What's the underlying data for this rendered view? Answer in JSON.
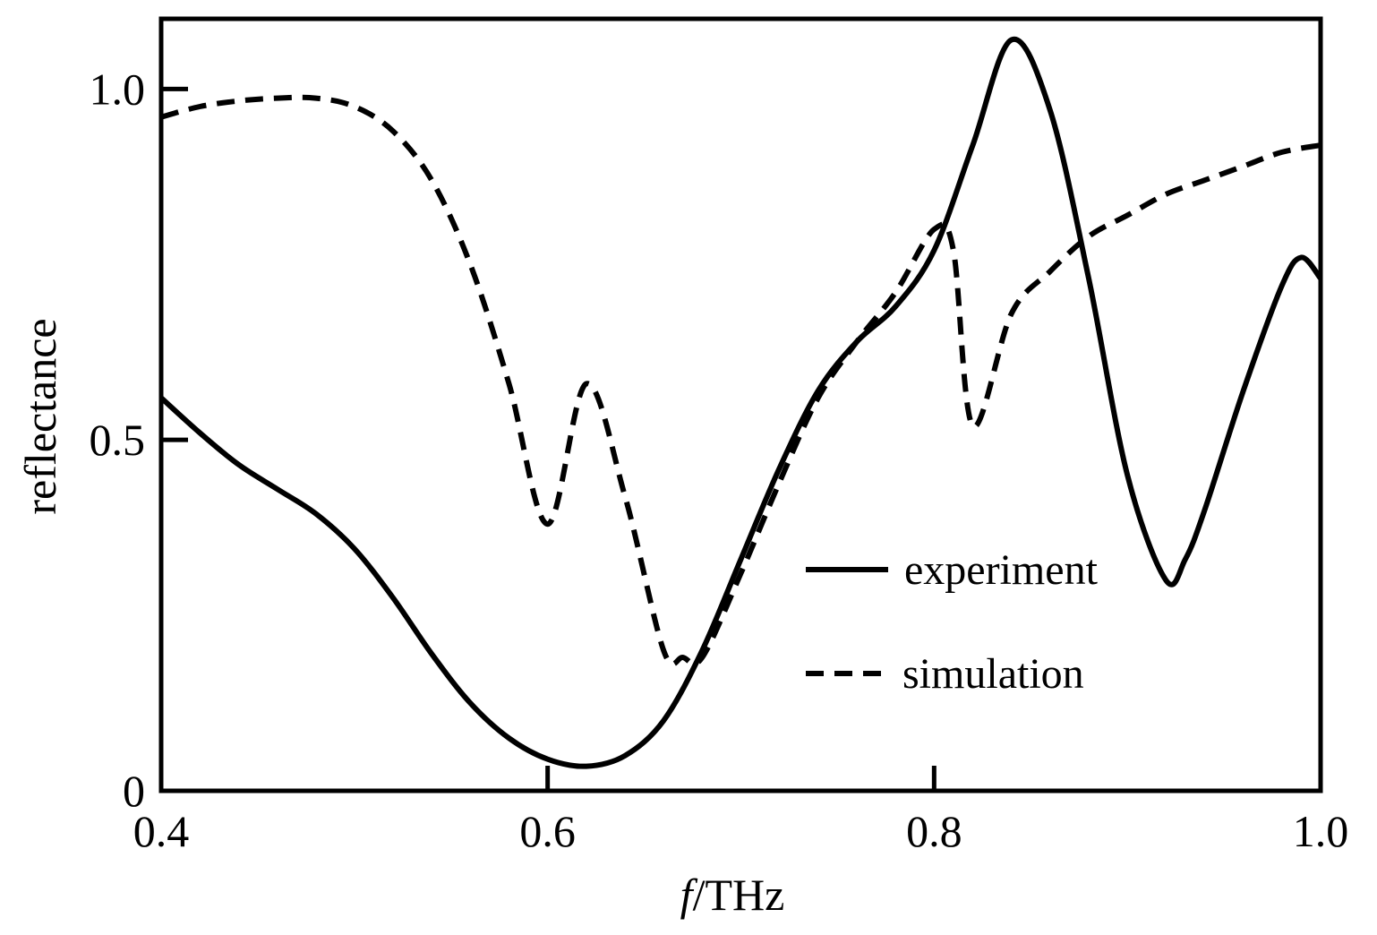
{
  "chart_data": {
    "type": "line",
    "xlabel_italic": "f",
    "xlabel_rest": "/THz",
    "ylabel": "reflectance",
    "xlim": [
      0.4,
      1.0
    ],
    "ylim": [
      0,
      1.1
    ],
    "x_ticks": [
      0.4,
      0.6,
      0.8,
      1.0
    ],
    "x_tick_labels": [
      "0.4",
      "0.6",
      "0.8",
      "1.0"
    ],
    "y_ticks": [
      0,
      0.5,
      1.0
    ],
    "y_tick_labels": [
      "0",
      "0.5",
      "1.0"
    ],
    "grid": false,
    "legend_position": "center-right",
    "series": [
      {
        "name": "experiment",
        "style": "solid",
        "color": "#000000",
        "x": [
          0.4,
          0.42,
          0.44,
          0.46,
          0.48,
          0.5,
          0.52,
          0.54,
          0.56,
          0.58,
          0.6,
          0.62,
          0.64,
          0.66,
          0.68,
          0.7,
          0.72,
          0.74,
          0.76,
          0.78,
          0.8,
          0.82,
          0.84,
          0.86,
          0.88,
          0.9,
          0.92,
          0.93,
          0.94,
          0.96,
          0.98,
          0.99,
          1.0
        ],
        "y": [
          0.56,
          0.51,
          0.465,
          0.43,
          0.395,
          0.345,
          0.275,
          0.195,
          0.125,
          0.075,
          0.045,
          0.035,
          0.05,
          0.1,
          0.2,
          0.33,
          0.46,
          0.57,
          0.64,
          0.69,
          0.77,
          0.92,
          1.07,
          0.97,
          0.73,
          0.45,
          0.3,
          0.33,
          0.4,
          0.57,
          0.72,
          0.76,
          0.73
        ]
      },
      {
        "name": "simulation",
        "style": "dashed",
        "color": "#000000",
        "x": [
          0.4,
          0.42,
          0.44,
          0.46,
          0.48,
          0.5,
          0.52,
          0.54,
          0.56,
          0.58,
          0.6,
          0.62,
          0.64,
          0.66,
          0.67,
          0.68,
          0.7,
          0.72,
          0.74,
          0.76,
          0.78,
          0.8,
          0.81,
          0.82,
          0.84,
          0.86,
          0.88,
          0.9,
          0.92,
          0.94,
          0.96,
          0.98,
          1.0
        ],
        "y": [
          0.96,
          0.975,
          0.983,
          0.987,
          0.987,
          0.975,
          0.94,
          0.87,
          0.75,
          0.58,
          0.38,
          0.58,
          0.42,
          0.2,
          0.19,
          0.19,
          0.31,
          0.44,
          0.56,
          0.64,
          0.71,
          0.8,
          0.77,
          0.52,
          0.68,
          0.74,
          0.79,
          0.82,
          0.85,
          0.87,
          0.89,
          0.91,
          0.92
        ]
      }
    ]
  }
}
